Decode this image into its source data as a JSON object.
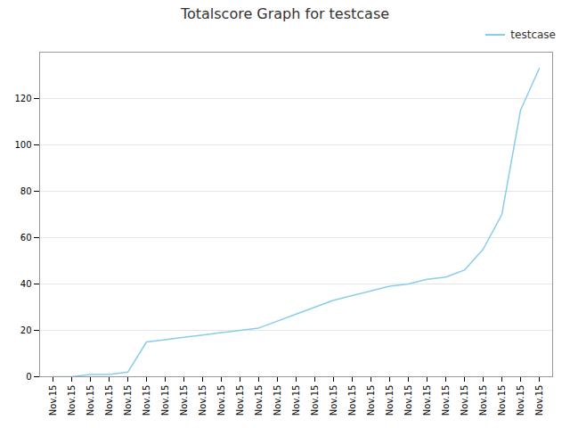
{
  "chart_data": {
    "type": "line",
    "title": "Totalscore Graph for testcase",
    "categories": [
      "Nov.15",
      "Nov.15",
      "Nov.15",
      "Nov.15",
      "Nov.15",
      "Nov.15",
      "Nov.15",
      "Nov.15",
      "Nov.15",
      "Nov.15",
      "Nov.15",
      "Nov.15",
      "Nov.15",
      "Nov.15",
      "Nov.15",
      "Nov.15",
      "Nov.15",
      "Nov.15",
      "Nov.15",
      "Nov.15",
      "Nov.15",
      "Nov.15",
      "Nov.15",
      "Nov.15",
      "Nov.15",
      "Nov.15",
      "Nov.15"
    ],
    "series": [
      {
        "name": "testcase",
        "color": "#87CEEB",
        "values": [
          0,
          0,
          1,
          1,
          2,
          15,
          16,
          17,
          18,
          19,
          20,
          21,
          24,
          27,
          30,
          33,
          35,
          37,
          39,
          40,
          42,
          43,
          46,
          55,
          70,
          115,
          133
        ]
      }
    ],
    "ylim": [
      0,
      140
    ],
    "yticks": [
      0,
      20,
      40,
      60,
      80,
      100,
      120
    ],
    "grid": true,
    "legend": "upper right"
  }
}
